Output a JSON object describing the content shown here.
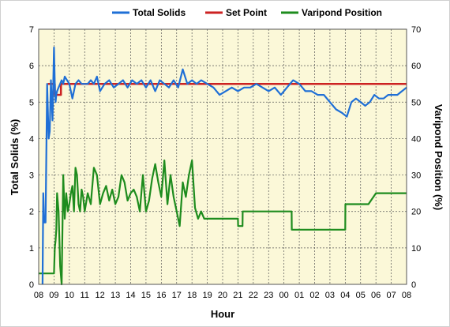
{
  "chart_data": {
    "type": "line",
    "xlabel": "Hour",
    "ylabel": "Total Solids (%)",
    "y2label": "Varipond Position (%)",
    "x_tick_labels": [
      "08",
      "09",
      "10",
      "11",
      "12",
      "13",
      "14",
      "15",
      "16",
      "17",
      "18",
      "19",
      "20",
      "21",
      "22",
      "23",
      "00",
      "01",
      "02",
      "03",
      "04",
      "05",
      "06",
      "07",
      "08"
    ],
    "x_range_hours": [
      0,
      24
    ],
    "ylim": [
      0,
      7
    ],
    "y_ticks": [
      0,
      1,
      2,
      3,
      4,
      5,
      6,
      7
    ],
    "y2lim": [
      0,
      70
    ],
    "y2_ticks": [
      0,
      10,
      20,
      30,
      40,
      50,
      60,
      70
    ],
    "grid": true,
    "background": "#fbf8d8",
    "legend_position": "top",
    "series": [
      {
        "name": "Total Solids",
        "color": "#1f6fd6",
        "axis": "left",
        "x": [
          0.0,
          0.15,
          0.25,
          0.3,
          0.35,
          0.45,
          0.55,
          0.65,
          0.72,
          0.8,
          0.9,
          1.0,
          1.05,
          1.1,
          1.15,
          1.2,
          1.3,
          1.4,
          1.5,
          1.6,
          1.7,
          1.85,
          2.0,
          2.2,
          2.4,
          2.6,
          2.8,
          3.0,
          3.2,
          3.4,
          3.6,
          3.8,
          4.0,
          4.3,
          4.6,
          4.9,
          5.2,
          5.5,
          5.8,
          6.1,
          6.4,
          6.7,
          7.0,
          7.3,
          7.6,
          7.9,
          8.2,
          8.5,
          8.8,
          9.1,
          9.4,
          9.7,
          10.0,
          10.3,
          10.6,
          11.0,
          11.4,
          11.8,
          12.2,
          12.6,
          13.0,
          13.4,
          13.8,
          14.2,
          14.6,
          15.0,
          15.4,
          15.8,
          16.2,
          16.6,
          17.0,
          17.4,
          17.8,
          18.2,
          18.6,
          19.0,
          19.4,
          19.8,
          20.1,
          20.4,
          20.7,
          21.0,
          21.3,
          21.6,
          21.9,
          22.2,
          22.5,
          22.8,
          23.1,
          23.4,
          23.7,
          24.0
        ],
        "values": [
          null,
          null,
          0.0,
          2.5,
          1.7,
          1.7,
          5.5,
          4.0,
          4.2,
          5.6,
          4.5,
          6.5,
          5.5,
          5.0,
          5.2,
          5.3,
          5.4,
          5.5,
          5.6,
          5.5,
          5.7,
          5.6,
          5.5,
          5.1,
          5.5,
          5.6,
          5.5,
          5.5,
          5.5,
          5.6,
          5.5,
          5.7,
          5.3,
          5.5,
          5.6,
          5.4,
          5.5,
          5.6,
          5.4,
          5.6,
          5.5,
          5.6,
          5.4,
          5.6,
          5.3,
          5.6,
          5.5,
          5.4,
          5.6,
          5.4,
          5.9,
          5.5,
          5.6,
          5.5,
          5.6,
          5.5,
          5.4,
          5.2,
          5.3,
          5.4,
          5.3,
          5.4,
          5.4,
          5.5,
          5.4,
          5.3,
          5.4,
          5.2,
          5.4,
          5.6,
          5.5,
          5.3,
          5.3,
          5.2,
          5.2,
          5.0,
          4.8,
          4.7,
          4.6,
          5.0,
          5.1,
          5.0,
          4.9,
          5.0,
          5.2,
          5.1,
          5.1,
          5.2,
          5.2,
          5.2,
          5.3,
          5.4
        ]
      },
      {
        "name": "Set Point",
        "color": "#cc2222",
        "axis": "left",
        "x": [
          0.6,
          1.05,
          1.05,
          1.45,
          1.45,
          24.0
        ],
        "values": [
          5.5,
          5.5,
          5.2,
          5.2,
          5.5,
          5.5
        ]
      },
      {
        "name": "Varipond Position",
        "color": "#1e8c1e",
        "axis": "right",
        "x": [
          0.0,
          1.0,
          1.05,
          1.1,
          1.15,
          1.2,
          1.3,
          1.4,
          1.5,
          1.6,
          1.7,
          1.8,
          1.9,
          2.0,
          2.1,
          2.2,
          2.3,
          2.4,
          2.5,
          2.6,
          2.7,
          2.8,
          2.9,
          3.0,
          3.2,
          3.4,
          3.6,
          3.8,
          4.0,
          4.2,
          4.4,
          4.6,
          4.8,
          5.0,
          5.2,
          5.4,
          5.6,
          5.8,
          6.0,
          6.2,
          6.4,
          6.6,
          6.8,
          7.0,
          7.2,
          7.4,
          7.6,
          7.8,
          8.0,
          8.2,
          8.4,
          8.6,
          8.8,
          9.0,
          9.2,
          9.4,
          9.6,
          9.8,
          10.0,
          10.2,
          10.4,
          10.6,
          10.8,
          11.0,
          11.5,
          12.0,
          12.5,
          13.0,
          13.01,
          13.3,
          13.31,
          13.5,
          13.51,
          14.0,
          14.01,
          14.5,
          14.51,
          15.0,
          16.5,
          16.51,
          17.0,
          17.01,
          19.0,
          19.01,
          20.0,
          20.01,
          21.5,
          21.51,
          22.0,
          24.0
        ],
        "values": [
          3,
          3,
          10,
          12,
          15,
          25,
          20,
          5,
          0,
          30,
          18,
          25,
          20,
          22,
          25,
          27,
          20,
          32,
          30,
          22,
          20,
          26,
          24,
          20,
          25,
          22,
          32,
          30,
          22,
          25,
          27,
          23,
          26,
          22,
          24,
          30,
          28,
          23,
          25,
          26,
          24,
          20,
          30,
          20,
          23,
          29,
          33,
          28,
          24,
          34,
          22,
          30,
          24,
          20,
          16,
          28,
          24,
          30,
          34,
          21,
          18,
          20,
          18,
          18,
          18,
          18,
          18,
          18,
          16,
          16,
          20,
          20,
          20,
          20,
          20,
          20,
          20,
          20,
          20,
          15,
          15,
          15,
          15,
          15,
          15,
          22,
          22,
          22,
          25,
          25
        ]
      }
    ]
  }
}
